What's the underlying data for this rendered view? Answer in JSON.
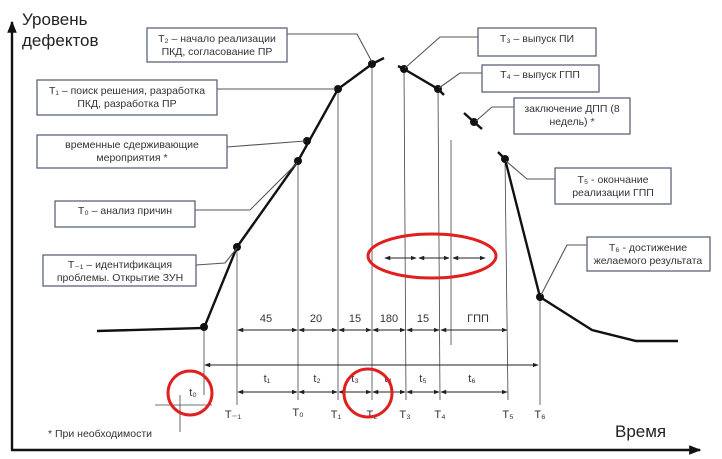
{
  "axes": {
    "y_label": [
      "Уровень",
      "дефектов"
    ],
    "x_label": "Время"
  },
  "boxes": {
    "t2": [
      "T₂ – начало реализации",
      "ПКД, согласование ПР"
    ],
    "t1": [
      "T₁ – поиск решения, разработка",
      "ПКД, разработка ПР"
    ],
    "temp": [
      "временные сдерживающие",
      "мероприятия *"
    ],
    "t0": [
      "T₀ – анализ причин"
    ],
    "tm1": [
      "T₋₁ – идентификация",
      "проблемы. Открытие ЗУН"
    ],
    "t3": [
      "T₃ – выпуск ПИ"
    ],
    "t4": [
      "T₄ – выпуск ГПП"
    ],
    "dpp": [
      "заключение ДПП (8",
      "недель) *"
    ],
    "t5": [
      "T₅ - окончание",
      "реализации ГПП"
    ],
    "t6": [
      "T₆ - достижение",
      "желаемого результата"
    ]
  },
  "durations": [
    "45",
    "20",
    "15",
    "180",
    "15",
    "ГПП"
  ],
  "intervals": [
    "t₁",
    "t₂",
    "t₃",
    "t₄",
    "t₅",
    "t₆"
  ],
  "t0_label": "t₀",
  "milestones": [
    "T₋₁",
    "T₀",
    "T₁",
    "T₂",
    "T₃",
    "T₄",
    "T₅",
    "T₆"
  ],
  "footnote": "* При необходимости",
  "highlight_color": "#e02020"
}
